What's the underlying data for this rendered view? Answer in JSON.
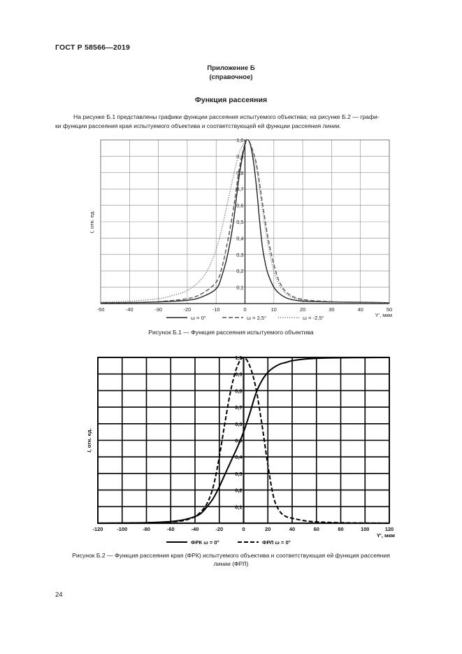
{
  "header": {
    "standard": "ГОСТ Р 58566—2019"
  },
  "annex": {
    "title": "Приложение Б",
    "kind": "(справочное)"
  },
  "section": {
    "title": "Функция рассеяния"
  },
  "paragraph": {
    "line1": "На рисунке Б.1 представлены графики функции рассеяния испытуемого объектива; на рисунке Б.2 — графи-",
    "line2": "ки функции рассеяния края испытуемого объектива и соответствующей ей функции рассеяния линии."
  },
  "figure1": {
    "caption": "Рисунок Б.1 — Функция рассеяния испытуемого объектива",
    "legend": [
      "ω = 0°",
      "ω = 2,5°",
      "ω = -2,5°"
    ]
  },
  "figure2": {
    "caption_line1": "Рисунок Б.2 — Функция рассеяния края (ФРК) испытуемого объектива и соответствующая ей функция рассеяния",
    "caption_line2": "линии (ФРЛ)",
    "legend": [
      "ФРК ω = 0°",
      "ФРЛ ω = 0°"
    ]
  },
  "page_number": "24",
  "chart_data": [
    {
      "type": "line",
      "ylabel": "I, отн. ед.",
      "xlabel": "Y', мкм",
      "xlim": [
        -50,
        50
      ],
      "ylim": [
        0,
        1.0
      ],
      "xticks": [
        -50,
        -40,
        -30,
        -20,
        -10,
        0,
        10,
        20,
        30,
        40,
        50
      ],
      "yticks": [
        "0,1",
        "0,2",
        "0,3",
        "0,4",
        "0,5",
        "0,6",
        "0,7",
        "0,8",
        "0,9",
        "1,0"
      ],
      "grid": true,
      "legend_position": "bottom",
      "series": [
        {
          "name": "ω = 0°",
          "style": "solid",
          "x": [
            -50,
            -40,
            -30,
            -20,
            -15,
            -10,
            -8,
            -6,
            -4,
            -2,
            0,
            1,
            2,
            3,
            4,
            5,
            6,
            7,
            8,
            10,
            12,
            15,
            20,
            30,
            40,
            50
          ],
          "y": [
            0.005,
            0.006,
            0.01,
            0.02,
            0.04,
            0.09,
            0.17,
            0.3,
            0.5,
            0.78,
            0.97,
            1.0,
            0.96,
            0.86,
            0.71,
            0.52,
            0.35,
            0.25,
            0.18,
            0.1,
            0.06,
            0.03,
            0.015,
            0.01,
            0.008,
            0.005
          ]
        },
        {
          "name": "ω = 2,5°",
          "style": "dashed",
          "x": [
            -50,
            -40,
            -30,
            -20,
            -15,
            -10,
            -8,
            -6,
            -4,
            -2,
            0,
            1,
            2,
            4,
            6,
            8,
            10,
            12,
            15,
            20,
            30,
            40,
            50
          ],
          "y": [
            0.005,
            0.007,
            0.012,
            0.03,
            0.06,
            0.13,
            0.22,
            0.38,
            0.58,
            0.82,
            0.98,
            1.0,
            0.97,
            0.85,
            0.62,
            0.4,
            0.24,
            0.13,
            0.06,
            0.025,
            0.012,
            0.008,
            0.005
          ]
        },
        {
          "name": "ω = -2,5°",
          "style": "dotted",
          "x": [
            -50,
            -40,
            -30,
            -25,
            -20,
            -15,
            -12,
            -10,
            -8,
            -6,
            -4,
            -2,
            0,
            1,
            2,
            4,
            6,
            8,
            10,
            12,
            15,
            20,
            30,
            40,
            50
          ],
          "y": [
            0.01,
            0.015,
            0.03,
            0.05,
            0.08,
            0.15,
            0.24,
            0.33,
            0.46,
            0.62,
            0.78,
            0.92,
            0.99,
            1.0,
            0.97,
            0.83,
            0.58,
            0.36,
            0.2,
            0.11,
            0.05,
            0.02,
            0.01,
            0.006,
            0.004
          ]
        }
      ]
    },
    {
      "type": "line",
      "ylabel": "I, отн. ед.",
      "xlabel": "Y', мкм",
      "xlim": [
        -120,
        120
      ],
      "ylim": [
        0,
        1.0
      ],
      "xticks": [
        -120,
        -100,
        -80,
        -60,
        -40,
        -20,
        0,
        20,
        40,
        60,
        80,
        100,
        120
      ],
      "yticks": [
        "0,1",
        "0,2",
        "0,3",
        "0,4",
        "0,5",
        "0,6",
        "0,7",
        "0,8",
        "0,9",
        "1,0"
      ],
      "grid": true,
      "legend_position": "bottom",
      "series": [
        {
          "name": "ФРК ω = 0°",
          "style": "solid",
          "x": [
            -120,
            -100,
            -80,
            -60,
            -50,
            -40,
            -35,
            -30,
            -25,
            -20,
            -15,
            -10,
            -5,
            0,
            5,
            10,
            15,
            20,
            25,
            30,
            35,
            40,
            50,
            60,
            80,
            100,
            120
          ],
          "y": [
            0.0,
            0.001,
            0.003,
            0.01,
            0.02,
            0.04,
            0.06,
            0.1,
            0.15,
            0.22,
            0.3,
            0.38,
            0.46,
            0.55,
            0.66,
            0.78,
            0.86,
            0.91,
            0.94,
            0.96,
            0.97,
            0.98,
            0.99,
            0.995,
            0.998,
            0.999,
            1.0
          ]
        },
        {
          "name": "ФРЛ ω = 0°",
          "style": "dashed",
          "x": [
            -120,
            -100,
            -80,
            -60,
            -50,
            -45,
            -40,
            -35,
            -30,
            -25,
            -20,
            -15,
            -10,
            -5,
            0,
            5,
            10,
            15,
            20,
            25,
            30,
            35,
            40,
            50,
            60,
            80,
            100,
            120
          ],
          "y": [
            0.0,
            0.001,
            0.003,
            0.008,
            0.015,
            0.025,
            0.04,
            0.07,
            0.12,
            0.22,
            0.4,
            0.62,
            0.82,
            0.95,
            1.0,
            0.95,
            0.82,
            0.6,
            0.35,
            0.15,
            0.07,
            0.04,
            0.03,
            0.015,
            0.008,
            0.003,
            0.001,
            0.0
          ]
        }
      ]
    }
  ]
}
